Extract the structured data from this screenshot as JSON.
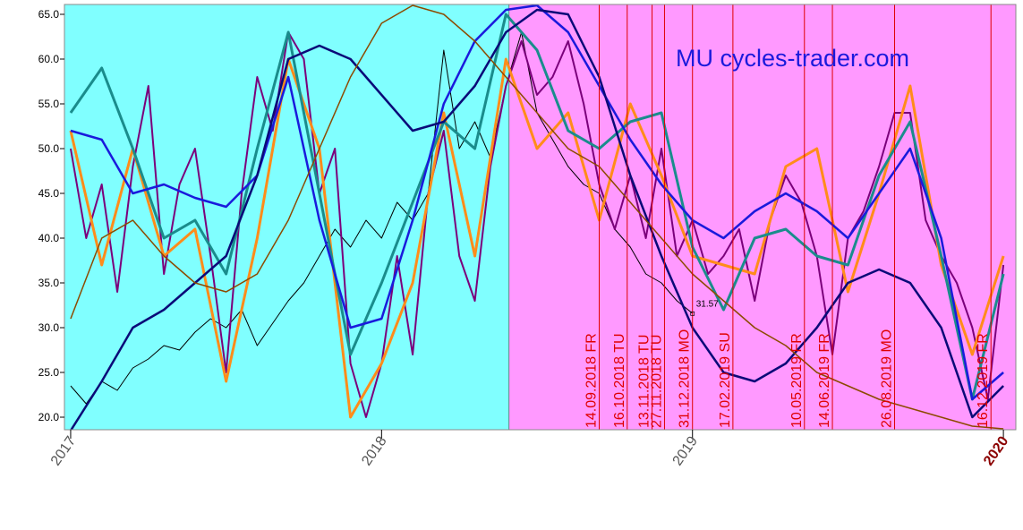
{
  "chart_data": {
    "type": "line",
    "title": "MU cycles-trader.com",
    "xlim": [
      2016.98,
      2020.04
    ],
    "ylim": [
      18.6,
      66.1
    ],
    "xticks": [
      2017,
      2018,
      2019,
      2020
    ],
    "yticks": [
      {
        "value": 20,
        "label": "20.0"
      },
      {
        "value": 25,
        "label": "25.0"
      },
      {
        "value": 30,
        "label": "30.0"
      },
      {
        "value": 35,
        "label": "35.0"
      },
      {
        "value": 40,
        "label": "40.0"
      },
      {
        "value": 45,
        "label": "45.0"
      },
      {
        "value": 50,
        "label": "50.0"
      },
      {
        "value": 55,
        "label": "55.0"
      },
      {
        "value": 60,
        "label": "60.0"
      },
      {
        "value": 65,
        "label": "65.0"
      }
    ],
    "regions": [
      {
        "from": 2016.98,
        "to": 2018.41,
        "color": "#80ffff"
      },
      {
        "from": 2018.41,
        "to": 2020.04,
        "color": "#ff99ff"
      }
    ],
    "markers": [
      {
        "x": 2018.7,
        "label": "14.09.2018 FR"
      },
      {
        "x": 2018.79,
        "label": "16.10.2018 TU"
      },
      {
        "x": 2018.87,
        "label": "13.11.2018 TU"
      },
      {
        "x": 2018.91,
        "label": "27.11.2018 TU"
      },
      {
        "x": 2019.0,
        "label": "31.12.2018 MO"
      },
      {
        "x": 2019.13,
        "label": "17.02.2019 SU"
      },
      {
        "x": 2019.36,
        "label": "10.05.2019 FR"
      },
      {
        "x": 2019.45,
        "label": "14.06.2019 FR"
      },
      {
        "x": 2019.65,
        "label": "26.08.2019 MO"
      },
      {
        "x": 2019.96,
        "label": "16.12.2019 FR"
      }
    ],
    "marker_color": "#e00000",
    "point_label": {
      "x": 2019.0,
      "y": 31.57,
      "label": "31.57"
    },
    "series": [
      {
        "color": "#000000",
        "width": 1,
        "x": [
          2017.0,
          2017.05,
          2017.1,
          2017.15,
          2017.2,
          2017.25,
          2017.3,
          2017.35,
          2017.4,
          2017.45,
          2017.5,
          2017.55,
          2017.6,
          2017.65,
          2017.7,
          2017.75,
          2017.8,
          2017.85,
          2017.9,
          2017.95,
          2018.0,
          2018.05,
          2018.1,
          2018.15,
          2018.2,
          2018.25,
          2018.3,
          2018.35,
          2018.4,
          2018.45,
          2018.5,
          2018.55,
          2018.6,
          2018.65,
          2018.7,
          2018.75,
          2018.8,
          2018.85,
          2018.9,
          2018.95,
          2019.0
        ],
        "values": [
          23.5,
          21.5,
          24,
          23,
          25.5,
          26.5,
          28,
          27.5,
          29.5,
          31,
          30,
          32,
          28,
          30.5,
          33,
          35,
          38,
          41,
          39,
          42,
          40,
          44,
          42,
          45,
          61,
          50,
          53,
          49,
          57,
          63,
          54,
          51,
          48,
          46,
          45,
          41,
          39,
          36,
          35,
          33,
          31.6
        ]
      },
      {
        "color": "#7b007b",
        "width": 2,
        "x": [
          2017.0,
          2017.05,
          2017.1,
          2017.15,
          2017.2,
          2017.25,
          2017.3,
          2017.35,
          2017.4,
          2017.45,
          2017.5,
          2017.55,
          2017.6,
          2017.65,
          2017.7,
          2017.75,
          2017.8,
          2017.85,
          2017.9,
          2017.95,
          2018.0,
          2018.05,
          2018.1,
          2018.15,
          2018.2,
          2018.25,
          2018.3,
          2018.35,
          2018.4,
          2018.45,
          2018.5,
          2018.55,
          2018.6,
          2018.65,
          2018.7,
          2018.75,
          2018.8,
          2018.85,
          2018.9,
          2018.95,
          2019.0,
          2019.05,
          2019.1,
          2019.15,
          2019.2,
          2019.25,
          2019.3,
          2019.35,
          2019.4,
          2019.45,
          2019.5,
          2019.55,
          2019.6,
          2019.65,
          2019.7,
          2019.75,
          2019.8,
          2019.85,
          2019.9,
          2019.95,
          2020.0
        ],
        "values": [
          50,
          40,
          46,
          34,
          48,
          57,
          36,
          46,
          50,
          38,
          25,
          45,
          58,
          52,
          63,
          60,
          45,
          50,
          26,
          20,
          26,
          38,
          27,
          45,
          52,
          38,
          33,
          48,
          57,
          62,
          56,
          58,
          62,
          55,
          46,
          41,
          47,
          40,
          50,
          38,
          42,
          36,
          38,
          41,
          33,
          42,
          47,
          44,
          38,
          27,
          40,
          43,
          48,
          54,
          54,
          42,
          38,
          35,
          30,
          22,
          37
        ]
      },
      {
        "color": "#ff8c1a",
        "width": 3,
        "x": [
          2017.0,
          2017.1,
          2017.2,
          2017.3,
          2017.4,
          2017.5,
          2017.6,
          2017.7,
          2017.8,
          2017.9,
          2018.0,
          2018.1,
          2018.2,
          2018.3,
          2018.4,
          2018.5,
          2018.6,
          2018.7,
          2018.8,
          2018.9,
          2019.0,
          2019.1,
          2019.2,
          2019.3,
          2019.4,
          2019.5,
          2019.6,
          2019.7,
          2019.8,
          2019.9,
          2020.0
        ],
        "values": [
          52,
          37,
          50,
          38,
          41,
          24,
          40,
          60,
          50,
          20,
          26,
          35,
          54,
          38,
          60,
          50,
          54,
          42,
          55,
          47,
          38,
          37,
          36,
          48,
          50,
          34,
          45,
          57,
          37,
          27,
          38
        ]
      },
      {
        "color": "#1a8c8c",
        "width": 3,
        "x": [
          2017.0,
          2017.1,
          2017.2,
          2017.3,
          2017.4,
          2017.5,
          2017.6,
          2017.7,
          2017.8,
          2017.9,
          2018.0,
          2018.1,
          2018.2,
          2018.3,
          2018.4,
          2018.5,
          2018.6,
          2018.7,
          2018.8,
          2018.9,
          2019.0,
          2019.1,
          2019.2,
          2019.3,
          2019.4,
          2019.5,
          2019.6,
          2019.7,
          2019.8,
          2019.9,
          2020.0
        ],
        "values": [
          54,
          59,
          50,
          40,
          42,
          36,
          50,
          63,
          45,
          27,
          35,
          44,
          53,
          50,
          65,
          61,
          52,
          50,
          53,
          54,
          39,
          32,
          40,
          41,
          38,
          37,
          47,
          53,
          38,
          22,
          36
        ]
      },
      {
        "color": "#1a1adc",
        "width": 2.5,
        "x": [
          2017.0,
          2017.1,
          2017.2,
          2017.3,
          2017.4,
          2017.5,
          2017.6,
          2017.7,
          2017.8,
          2017.9,
          2018.0,
          2018.1,
          2018.2,
          2018.3,
          2018.4,
          2018.5,
          2018.6,
          2018.7,
          2018.8,
          2018.9,
          2019.0,
          2019.1,
          2019.2,
          2019.3,
          2019.4,
          2019.5,
          2019.6,
          2019.7,
          2019.8,
          2019.9,
          2020.0
        ],
        "values": [
          52,
          51,
          45,
          46,
          44.5,
          43.5,
          47,
          58,
          42,
          30,
          31,
          42,
          55,
          62,
          65.5,
          66,
          63,
          57,
          51,
          46,
          42,
          40,
          43,
          45,
          43,
          40,
          45,
          50,
          40,
          22,
          25
        ]
      },
      {
        "color": "#0a0a78",
        "width": 2.5,
        "x": [
          2017.0,
          2017.1,
          2017.2,
          2017.3,
          2017.4,
          2017.5,
          2017.6,
          2017.7,
          2017.8,
          2017.9,
          2018.0,
          2018.1,
          2018.2,
          2018.3,
          2018.4,
          2018.5,
          2018.6,
          2018.7,
          2018.8,
          2018.9,
          2019.0,
          2019.1,
          2019.2,
          2019.3,
          2019.4,
          2019.5,
          2019.6,
          2019.7,
          2019.8,
          2019.9,
          2020.0
        ],
        "values": [
          18.5,
          24,
          30,
          32,
          35,
          38,
          47,
          60,
          61.5,
          60,
          56,
          52,
          53,
          57,
          63,
          65.5,
          65,
          58,
          47,
          38,
          30,
          25,
          24,
          26,
          30,
          35,
          36.5,
          35,
          30,
          20,
          23.5
        ]
      },
      {
        "color": "#8c4a00",
        "width": 1.5,
        "x": [
          2017.0,
          2017.1,
          2017.2,
          2017.3,
          2017.4,
          2017.5,
          2017.6,
          2017.7,
          2017.8,
          2017.9,
          2018.0,
          2018.1,
          2018.2,
          2018.3,
          2018.4,
          2018.5,
          2018.6,
          2018.7,
          2018.8,
          2018.9,
          2019.0,
          2019.1,
          2019.2,
          2019.3,
          2019.4,
          2019.5,
          2019.6,
          2019.7,
          2019.8,
          2019.9,
          2020.0
        ],
        "values": [
          31,
          40,
          42,
          38,
          35,
          34,
          36,
          42,
          50,
          58,
          64,
          66,
          65,
          62,
          58,
          54,
          50,
          48,
          44,
          40,
          36,
          33,
          30,
          28,
          25,
          23.5,
          22,
          21,
          20,
          19,
          18.7
        ]
      }
    ]
  }
}
